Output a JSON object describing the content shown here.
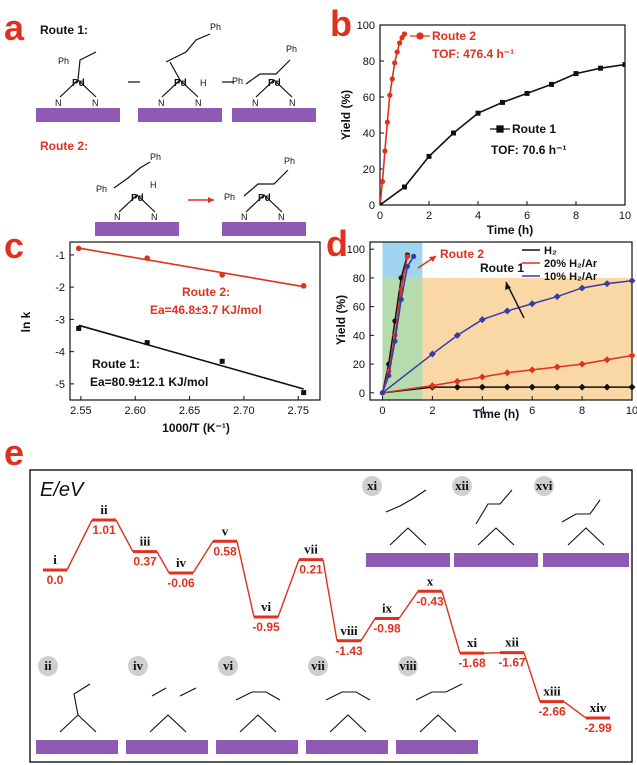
{
  "colors": {
    "red": "#e0301e",
    "black": "#111111",
    "blue": "#3a3aa8",
    "surface": "#8e5ab4",
    "shade_blue": "#9fd5ee",
    "shade_green": "#b6dcae",
    "shade_orange": "#f9d8a6"
  },
  "panel_letters": {
    "a": "a",
    "b": "b",
    "c": "c",
    "d": "d",
    "e": "e"
  },
  "panel_a": {
    "route1": "Route 1:",
    "route2": "Route 2:",
    "ph": "Ph",
    "pd": "Pd",
    "n": "N",
    "h": "H"
  },
  "chart_data": [
    {
      "panel": "b",
      "type": "line",
      "xlabel": "Time (h)",
      "ylabel": "Yield (%)",
      "xlim": [
        0,
        10
      ],
      "ylim": [
        0,
        100
      ],
      "xticks": [
        "0",
        "2",
        "4",
        "6",
        "8",
        "10"
      ],
      "yticks": [
        "0",
        "20",
        "40",
        "60",
        "80",
        "100"
      ],
      "series": [
        {
          "name": "Route 2",
          "color": "#e0301e",
          "note": "TOF: 476.4 h⁻¹",
          "x": [
            0,
            0.1,
            0.2,
            0.3,
            0.4,
            0.5,
            0.6,
            0.7,
            0.8,
            0.9,
            1.0
          ],
          "y": [
            0,
            13,
            30,
            46,
            61,
            70,
            79,
            85,
            90,
            93,
            95
          ]
        },
        {
          "name": "Route 1",
          "color": "#111111",
          "note": "TOF: 70.6 h⁻¹",
          "x": [
            0,
            1,
            2,
            3,
            4,
            5,
            6,
            7,
            8,
            9,
            10
          ],
          "y": [
            0,
            10,
            27,
            40,
            51,
            57,
            62,
            67,
            73,
            76,
            78
          ]
        }
      ]
    },
    {
      "panel": "c",
      "type": "scatter",
      "xlabel": "1000/T (K⁻¹)",
      "ylabel": "ln k",
      "xlim": [
        2.54,
        2.77
      ],
      "ylim": [
        -5.5,
        -0.6
      ],
      "xticks": [
        "2.55",
        "2.60",
        "2.65",
        "2.70",
        "2.75"
      ],
      "yticks": [
        "-1",
        "-2",
        "-3",
        "-4",
        "-5"
      ],
      "series": [
        {
          "name": "Route 2",
          "color": "#e0301e",
          "note": "Ea=46.8±3.7 KJ/mol",
          "x": [
            2.548,
            2.611,
            2.68,
            2.755
          ],
          "y": [
            -0.8,
            -1.1,
            -1.62,
            -1.96
          ]
        },
        {
          "name": "Route 1",
          "color": "#111111",
          "note": "Ea=80.9±12.1 KJ/mol",
          "x": [
            2.548,
            2.611,
            2.68,
            2.755
          ],
          "y": [
            -3.28,
            -3.72,
            -4.3,
            -5.27
          ]
        }
      ],
      "labels": {
        "route2": "Route 2:",
        "route1": "Route 1:"
      }
    },
    {
      "panel": "d",
      "type": "line",
      "xlabel": "Time (h)",
      "ylabel": "Yield (%)",
      "xlim": [
        -0.5,
        10
      ],
      "ylim": [
        -5,
        105
      ],
      "xticks": [
        "0",
        "2",
        "4",
        "6",
        "8",
        "10"
      ],
      "yticks": [
        "0",
        "20",
        "40",
        "60",
        "80",
        "100"
      ],
      "legend": [
        "H₂",
        "20% H₂/Ar",
        "10% H₂/Ar"
      ],
      "annotations": [
        "Route 2",
        "Route 1"
      ],
      "series": [
        {
          "name": "H₂",
          "color": "#111111",
          "x": [
            0,
            0.25,
            0.5,
            0.75,
            1,
            2,
            3,
            4,
            5,
            6,
            7,
            8,
            9,
            10
          ],
          "y": [
            0,
            20,
            50,
            80,
            96,
            4,
            4,
            4,
            4,
            4,
            4,
            4,
            4,
            4
          ]
        },
        {
          "name": "20% H₂/Ar",
          "color": "#e0301e",
          "x": [
            0,
            0.25,
            0.5,
            0.75,
            1,
            2,
            3,
            4,
            5,
            6,
            7,
            8,
            9,
            10
          ],
          "y": [
            0,
            15,
            40,
            72,
            95,
            5,
            8,
            11,
            14,
            16,
            18,
            20,
            23,
            26
          ]
        },
        {
          "name": "10% H₂/Ar",
          "color": "#3a3aa8",
          "x": [
            0,
            0.25,
            0.5,
            0.75,
            1,
            1.25,
            2,
            3,
            4,
            5,
            6,
            7,
            8,
            9,
            10
          ],
          "y": [
            0,
            12,
            36,
            65,
            88,
            95,
            27,
            40,
            51,
            57,
            62,
            67,
            73,
            76,
            78
          ]
        }
      ]
    },
    {
      "panel": "e",
      "type": "line",
      "ylabel": "E/eV",
      "states": [
        {
          "label": "i",
          "energy": "0.0",
          "e": 0.0
        },
        {
          "label": "ii",
          "energy": "1.01",
          "e": 1.01
        },
        {
          "label": "iii",
          "energy": "0.37",
          "e": 0.37
        },
        {
          "label": "iv",
          "energy": "-0.06",
          "e": -0.06
        },
        {
          "label": "v",
          "energy": "0.58",
          "e": 0.58
        },
        {
          "label": "vi",
          "energy": "-0.95",
          "e": -0.95
        },
        {
          "label": "vii",
          "energy": "0.21",
          "e": 0.21
        },
        {
          "label": "viii",
          "energy": "-1.43",
          "e": -1.43
        },
        {
          "label": "ix",
          "energy": "-0.98",
          "e": -0.98
        },
        {
          "label": "x",
          "energy": "-0.43",
          "e": -0.43
        },
        {
          "label": "xi",
          "energy": "-1.68",
          "e": -1.68
        },
        {
          "label": "xii",
          "energy": "-1.67",
          "e": -1.67
        },
        {
          "label": "xiii",
          "energy": "-2.66",
          "e": -2.66
        },
        {
          "label": "xiv",
          "energy": "-2.99",
          "e": -2.99
        }
      ],
      "insets_top": [
        "xi",
        "xii",
        "xvi"
      ],
      "insets_bottom": [
        "ii",
        "iv",
        "vi",
        "vii",
        "viii"
      ]
    }
  ]
}
